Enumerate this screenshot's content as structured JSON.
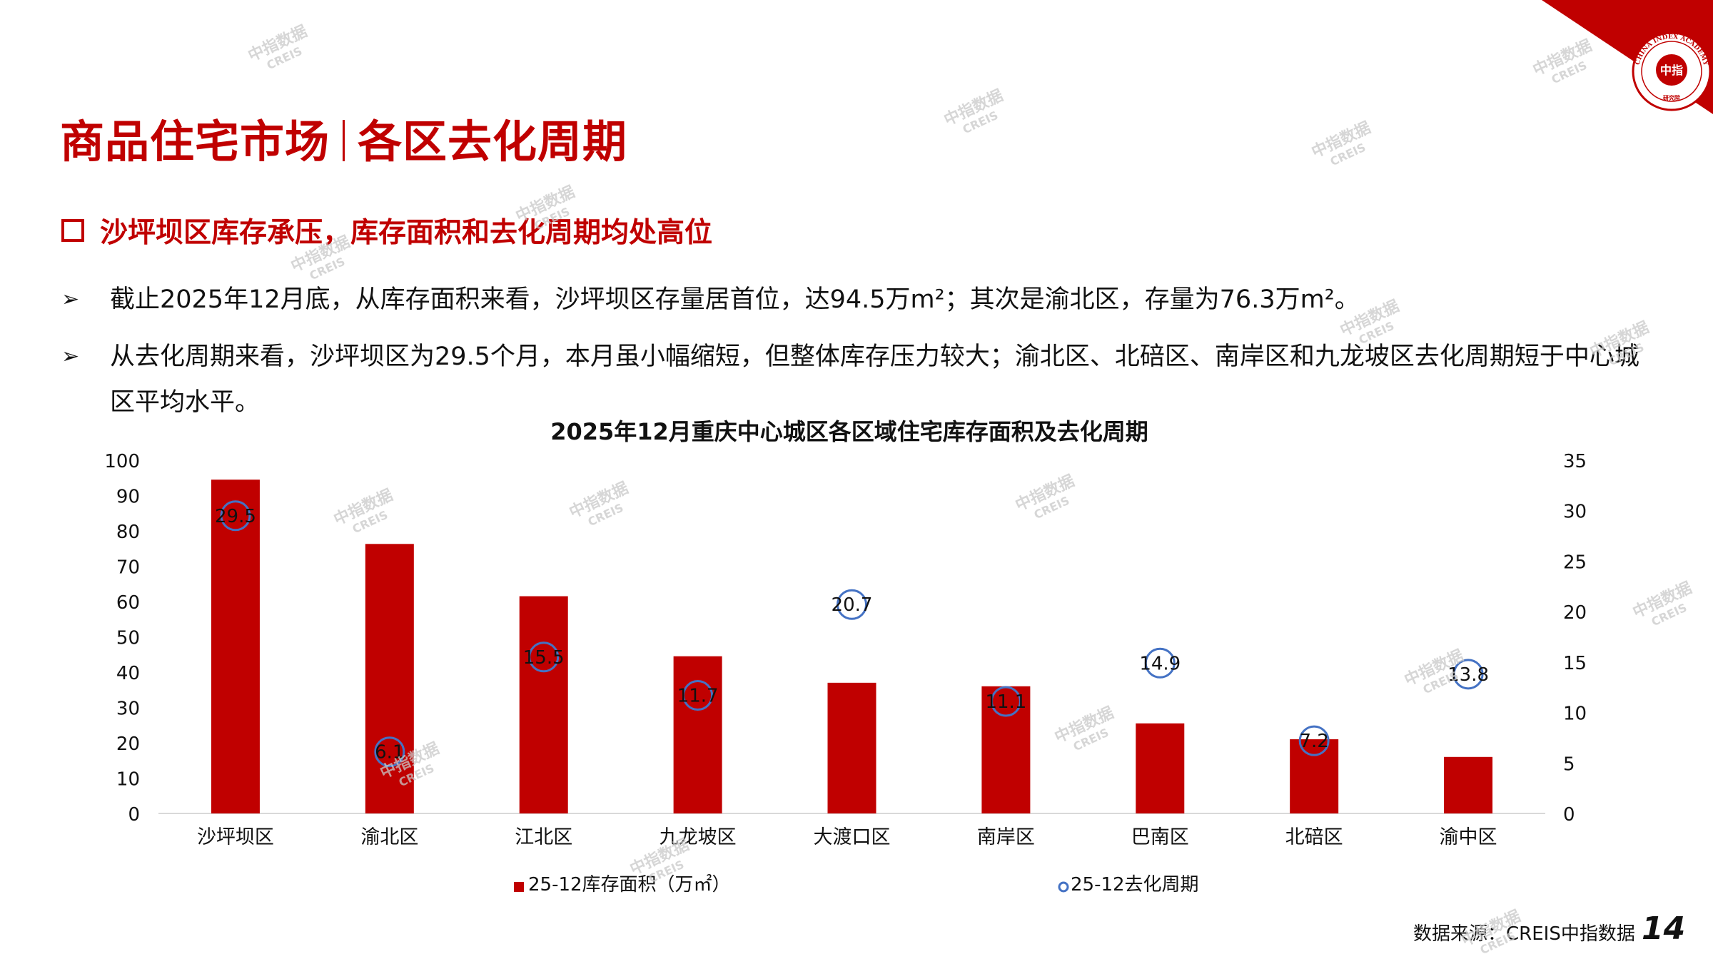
{
  "header": {
    "title_left": "商品住宅市场",
    "title_right": "各区去化周期"
  },
  "subheading": "沙坪坝区库存承压，库存面积和去化周期均处高位",
  "bullets": [
    "截止2025年12月底，从库存面积来看，沙坪坝区存量居首位，达94.5万m²；其次是渝北区，存量为76.3万m²。",
    "从去化周期来看，沙坪坝区为29.5个月，本月虽小幅缩短，但整体库存压力较大；渝北区、北碚区、南岸区和九龙坡区去化周期短于中心城区平均水平。"
  ],
  "bullet_marker": "➢",
  "footer": {
    "source": "数据来源：CREIS中指数据",
    "page_number": "14"
  },
  "logo": {
    "ring_text": "CHINA INDEX ACADEMY",
    "center_text": "中指",
    "bottom_text": "研究院"
  },
  "watermark": {
    "line1": "中指数据",
    "line2": "CREIS"
  },
  "colors": {
    "accent": "#c00000",
    "bar": "#c00000",
    "marker": "#4472c4"
  },
  "chart_data": {
    "type": "bar",
    "title": "2025年12月重庆中心城区各区域住宅库存面积及去化周期",
    "categories": [
      "沙坪坝区",
      "渝北区",
      "江北区",
      "九龙坡区",
      "大渡口区",
      "南岸区",
      "巴南区",
      "北碚区",
      "渝中区"
    ],
    "series": [
      {
        "name": "25-12库存面积（万㎡）",
        "type": "bar",
        "axis": "left",
        "values": [
          94.5,
          76.3,
          61.5,
          44.5,
          37,
          36,
          25.5,
          21,
          16
        ]
      },
      {
        "name": "25-12去化周期",
        "type": "scatter",
        "axis": "right",
        "values": [
          29.5,
          6.1,
          15.5,
          11.7,
          20.7,
          11.1,
          14.9,
          7.2,
          13.8
        ],
        "labels": [
          "29.5",
          "6.1",
          "15.5",
          "11.7",
          "20.7",
          "11.1",
          "14.9",
          "7.2",
          "13.8"
        ]
      }
    ],
    "y_left": {
      "min": 0,
      "max": 100,
      "ticks": [
        "0",
        "10",
        "20",
        "30",
        "40",
        "50",
        "60",
        "70",
        "80",
        "90",
        "100"
      ]
    },
    "y_right": {
      "min": 0,
      "max": 35,
      "ticks": [
        "0",
        "5",
        "10",
        "15",
        "20",
        "25",
        "30",
        "35"
      ]
    },
    "grid": false,
    "legend": "bottom"
  }
}
